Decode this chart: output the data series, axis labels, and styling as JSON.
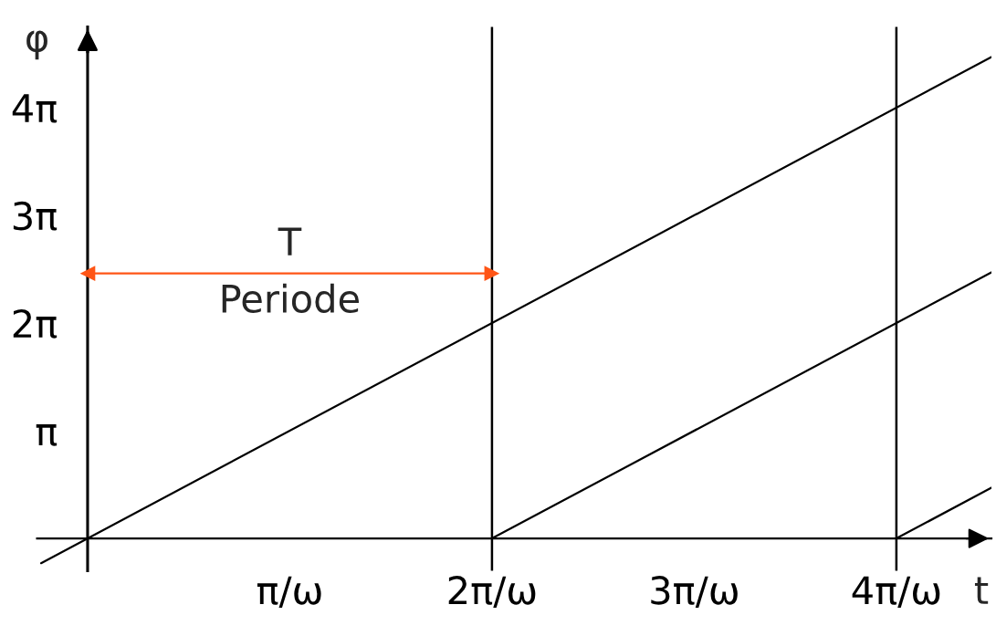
{
  "chart_data": {
    "type": "line",
    "xlabel": "t",
    "ylabel": "φ",
    "series": [
      {
        "color": "#000000",
        "x": [
          -0.23,
          4.47
        ],
        "values": [
          -0.72,
          14.04
        ]
      },
      {
        "color": "#000000",
        "x": [
          2,
          4.47
        ],
        "values": [
          0,
          7.76
        ]
      },
      {
        "color": "#000000",
        "x": [
          4,
          4.47
        ],
        "values": [
          0,
          1.48
        ]
      },
      {
        "color": "#ff5516",
        "x": [
          0,
          2
        ],
        "values": [
          7.73,
          7.73
        ],
        "marker": "triangle"
      }
    ],
    "xlim": [
      -0.25,
      4.47
    ],
    "ylim": [
      -0.94,
      14.92
    ],
    "xticks": [
      {
        "value": 1,
        "label": "π/ω"
      },
      {
        "value": 2,
        "label": "2π/ω"
      },
      {
        "value": 3,
        "label": "3π/ω"
      },
      {
        "value": 4,
        "label": "4π/ω"
      }
    ],
    "yticks": [
      {
        "value": 3.1416,
        "label": "π"
      },
      {
        "value": 6.2832,
        "label": "2π"
      },
      {
        "value": 9.4248,
        "label": "3π"
      },
      {
        "value": 12.5664,
        "label": "4π"
      }
    ],
    "ref_lines": [
      {
        "axis": "x",
        "value": 2,
        "color": "#000000"
      },
      {
        "axis": "x",
        "value": 4,
        "color": "#000000"
      }
    ],
    "annotations": [
      {
        "text": "T",
        "x": 1,
        "y": 7.73
      },
      {
        "text": "Periode",
        "x": 1,
        "y": 7.73
      }
    ],
    "grid": false,
    "line_style": "solid"
  }
}
